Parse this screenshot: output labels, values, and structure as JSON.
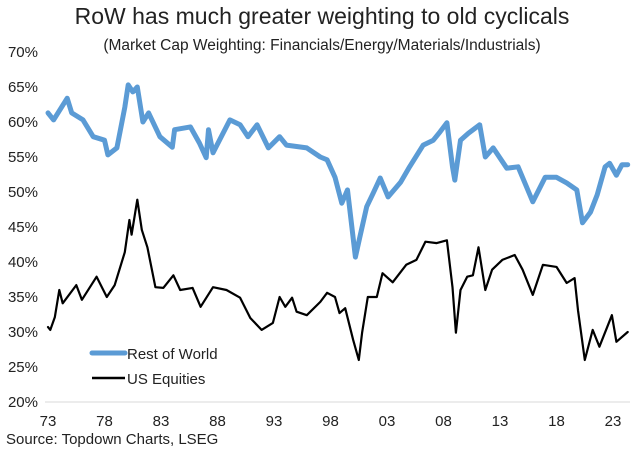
{
  "chart_data": {
    "type": "line",
    "title": "RoW has much greater weighting to old cyclicals",
    "subtitle": "(Market Cap Weighting: Financials/Energy/Materials/Industrials)",
    "source": "Source: Topdown Charts, LSEG",
    "xlabel": "",
    "ylabel": "",
    "xlim": [
      1973,
      2024.3
    ],
    "ylim": [
      20,
      70
    ],
    "x_ticks": [
      1973,
      1978,
      1983,
      1988,
      1993,
      1998,
      2003,
      2008,
      2013,
      2018,
      2023
    ],
    "x_tick_labels": [
      "73",
      "78",
      "83",
      "88",
      "93",
      "98",
      "03",
      "08",
      "13",
      "18",
      "23"
    ],
    "y_ticks": [
      20,
      25,
      30,
      35,
      40,
      45,
      50,
      55,
      60,
      65,
      70
    ],
    "y_tick_labels": [
      "20%",
      "25%",
      "30%",
      "35%",
      "40%",
      "45%",
      "50%",
      "55%",
      "60%",
      "65%",
      "70%"
    ],
    "grid": false,
    "legend_position": "bottom-left",
    "series": [
      {
        "name": "Rest of World",
        "color": "#5B9BD5",
        "x": [
          1973,
          1973.5,
          1974.7,
          1975.1,
          1976.1,
          1977,
          1978,
          1978.3,
          1979.1,
          1979.8,
          1980.1,
          1980.5,
          1980.9,
          1981.4,
          1981.9,
          1982.9,
          1984,
          1984.2,
          1985.6,
          1986.4,
          1987,
          1987.2,
          1987.6,
          1989.1,
          1990,
          1990.7,
          1991.5,
          1992.5,
          1993.5,
          1994.1,
          1995.9,
          1997.1,
          1997.7,
          1998.4,
          1999,
          1999.5,
          2000.2,
          2000.6,
          2001.2,
          2001.8,
          2002.4,
          2003.1,
          2004.2,
          2005,
          2006.2,
          2007.1,
          2007.7,
          2008.3,
          2008.8,
          2009,
          2009.5,
          2010.2,
          2011.2,
          2011.7,
          2012.4,
          2013.6,
          2014.6,
          2015.9,
          2017,
          2018,
          2018.9,
          2019.8,
          2020.3,
          2021,
          2021.6,
          2022.3,
          2022.7,
          2023.3,
          2023.8,
          2024.3
        ],
        "values": [
          61.3,
          60.3,
          63.4,
          61.3,
          60.3,
          57.9,
          57.4,
          55.3,
          56.3,
          62.1,
          65.3,
          64.3,
          65,
          60,
          61.3,
          57.9,
          56.4,
          58.9,
          59.3,
          57,
          54.9,
          58.9,
          55.6,
          60.3,
          59.6,
          57.9,
          59.6,
          56.3,
          57.9,
          56.7,
          56.3,
          55,
          54.6,
          52.1,
          48.4,
          50.3,
          40.7,
          43.6,
          47.9,
          49.9,
          52,
          49.3,
          51.4,
          53.6,
          56.7,
          57.4,
          58.6,
          59.9,
          53.6,
          51.7,
          57.4,
          58.4,
          59.6,
          55,
          56.3,
          53.4,
          53.6,
          48.6,
          52.1,
          52.1,
          51.3,
          50.3,
          45.6,
          47.1,
          49.6,
          53.6,
          54.1,
          52.4,
          53.9,
          53.9
        ]
      },
      {
        "name": "US Equities",
        "color": "#000000",
        "x": [
          1973,
          1973.2,
          1973.6,
          1974,
          1974.3,
          1975.5,
          1976,
          1977.3,
          1978.2,
          1978.9,
          1979.8,
          1980.2,
          1980.4,
          1980.9,
          1981.3,
          1981.8,
          1982.5,
          1983.2,
          1984.1,
          1984.7,
          1985.8,
          1986.5,
          1987.6,
          1988.8,
          1990,
          1990.9,
          1991.9,
          1992.9,
          1993.5,
          1994,
          1994.6,
          1995,
          1995.9,
          1997.1,
          1997.7,
          1998.4,
          1998.8,
          1999.3,
          2000,
          2000.5,
          2000.8,
          2001.3,
          2002.1,
          2002.6,
          2003.5,
          2004.7,
          2005.6,
          2006.4,
          2007.4,
          2008.3,
          2008.8,
          2009.1,
          2009.5,
          2010.1,
          2010.6,
          2011.1,
          2011.7,
          2012.3,
          2013.2,
          2014.3,
          2015,
          2015.9,
          2016.8,
          2018,
          2018.9,
          2019.6,
          2019.9,
          2020.5,
          2021.2,
          2021.8,
          2022.9,
          2023.3,
          2024.3
        ],
        "values": [
          30.7,
          30.3,
          32.1,
          36,
          34.1,
          36.7,
          34.6,
          37.9,
          35,
          36.7,
          41.4,
          46,
          43.9,
          48.9,
          44.6,
          42.1,
          36.4,
          36.3,
          38.1,
          36,
          36.3,
          33.6,
          36.4,
          36,
          34.9,
          32,
          30.3,
          31.3,
          35,
          33.6,
          34.9,
          32.9,
          32.4,
          34.3,
          35.6,
          35,
          32.7,
          33.4,
          28.9,
          26,
          29.9,
          35,
          35,
          38.4,
          37.1,
          39.6,
          40.3,
          42.9,
          42.7,
          43.1,
          36.4,
          29.9,
          36,
          37.9,
          38.1,
          42.1,
          36,
          38.9,
          40.3,
          41,
          38.9,
          35.3,
          39.6,
          39.3,
          37,
          37.7,
          33.1,
          26,
          30.3,
          27.9,
          32.4,
          28.6,
          30
        ]
      }
    ]
  }
}
